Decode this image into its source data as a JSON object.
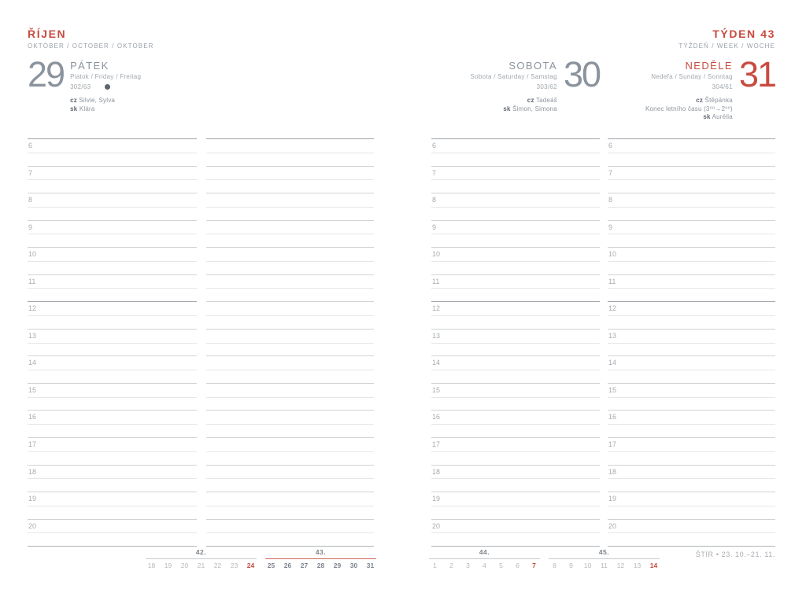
{
  "header": {
    "month_title": "ŘÍJEN",
    "month_subtitle": "OKTÓBER / OCTOBER / OKTOBER",
    "week_title": "TÝDEN 43",
    "week_subtitle": "TÝŽDEŇ / WEEK / WOCHE"
  },
  "days": [
    {
      "number": "29",
      "name": "PÁTEK",
      "translations": "Piatok / Friday / Freitag",
      "day_of_year": "302/63",
      "moon_icon": "new-moon-icon",
      "namedays": [
        {
          "label": "cz",
          "value": "Silvie, Sylva"
        },
        {
          "label": "sk",
          "value": "Klára"
        }
      ]
    },
    {
      "number": "30",
      "name": "SOBOTA",
      "translations": "Sobota / Saturday / Samstag",
      "day_of_year": "303/62",
      "namedays": [
        {
          "label": "cz",
          "value": "Tadeáš"
        },
        {
          "label": "sk",
          "value": "Šimon, Simona"
        }
      ]
    },
    {
      "number": "31",
      "name": "NEDĚLE",
      "translations": "Nedeľa / Sunday / Sonntag",
      "day_of_year": "304/61",
      "note": "Konec letního času (3⁰⁰→2⁰⁰)",
      "namedays": [
        {
          "label": "cz",
          "value": "Štěpánka"
        },
        {
          "label": "sk",
          "value": "Aurélia"
        }
      ]
    }
  ],
  "hours": [
    "6",
    "7",
    "8",
    "9",
    "10",
    "11",
    "12",
    "13",
    "14",
    "15",
    "16",
    "17",
    "18",
    "19",
    "20"
  ],
  "mini_weeks": [
    {
      "label": "42.",
      "current": false,
      "days": [
        {
          "n": "18"
        },
        {
          "n": "19"
        },
        {
          "n": "20"
        },
        {
          "n": "21"
        },
        {
          "n": "22"
        },
        {
          "n": "23"
        },
        {
          "n": "24",
          "red": true
        }
      ]
    },
    {
      "label": "43.",
      "current": true,
      "days": [
        {
          "n": "25"
        },
        {
          "n": "26"
        },
        {
          "n": "27"
        },
        {
          "n": "28",
          "red": true
        },
        {
          "n": "29"
        },
        {
          "n": "30"
        },
        {
          "n": "31",
          "red": true
        }
      ]
    },
    {
      "label": "44.",
      "current": false,
      "days": [
        {
          "n": "1"
        },
        {
          "n": "2"
        },
        {
          "n": "3"
        },
        {
          "n": "4"
        },
        {
          "n": "5"
        },
        {
          "n": "6"
        },
        {
          "n": "7",
          "red": true
        }
      ]
    },
    {
      "label": "45.",
      "current": false,
      "days": [
        {
          "n": "8"
        },
        {
          "n": "9"
        },
        {
          "n": "10"
        },
        {
          "n": "11"
        },
        {
          "n": "12"
        },
        {
          "n": "13"
        },
        {
          "n": "14",
          "red": true
        }
      ]
    }
  ],
  "zodiac": "ŠTÍR • 23. 10.–21. 11.",
  "colors": {
    "accent": "#c84b40",
    "day_gray": "#8b939d",
    "line_gray": "#d0d3d6"
  }
}
